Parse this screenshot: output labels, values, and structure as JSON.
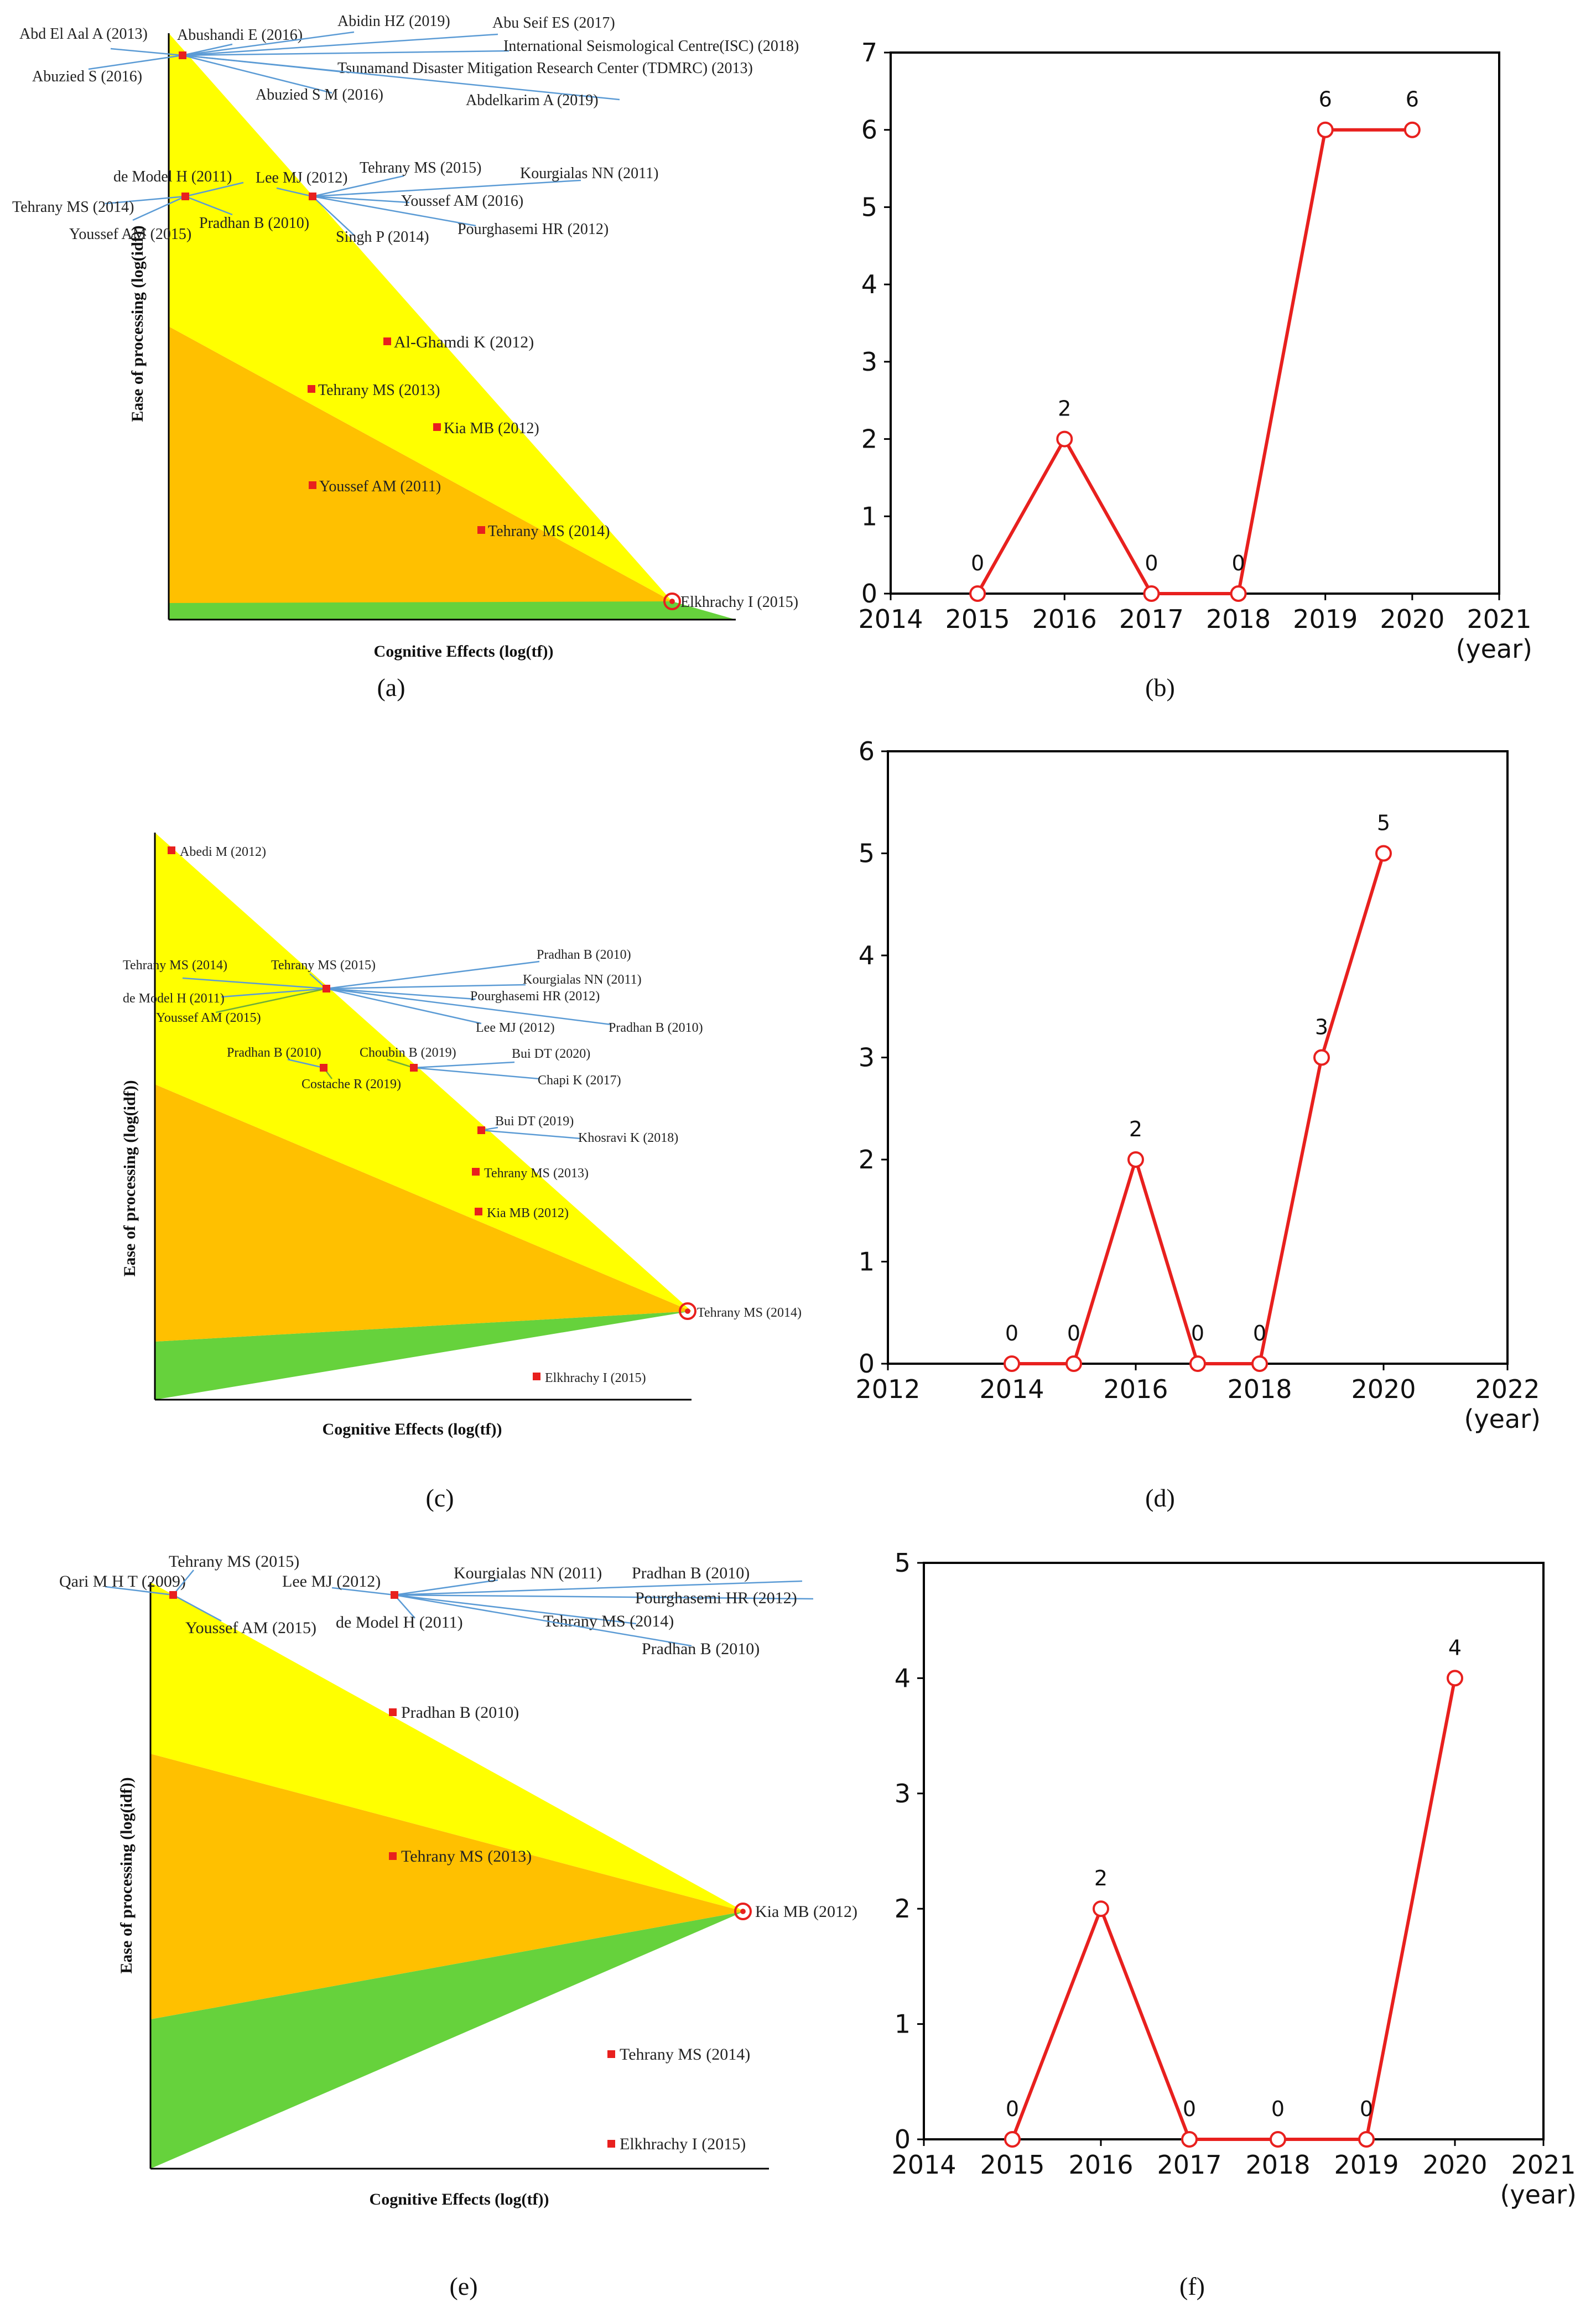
{
  "colors": {
    "yellow": "#ffff00",
    "orange": "#ffc000",
    "green": "#66d23c",
    "red": "#e8201e",
    "leader": "#5b9bd5",
    "leader_green": "#6fae3a",
    "axis": "#000000"
  },
  "chart_data": [
    {
      "id": "a",
      "type": "scatter",
      "panel_label": "(a)",
      "xlabel": "Cognitive Effects (log(tf))",
      "ylabel": "Ease of processing (log(idf))",
      "hubs": [
        {
          "labels": [
            "Abd El Aal A (2013)",
            "Abushandi E (2016)",
            "Abidin HZ (2019)",
            "Abu Seif ES (2017)",
            "International Seismological Centre(ISC) (2018)",
            "Tsunamand Disaster Mitigation Research Center (TDMRC) (2013)",
            "Abdelkarim A (2019)",
            "Abuzied S M (2016)",
            "Abuzied S (2016)"
          ]
        },
        {
          "labels": [
            "de Model H (2011)",
            "Tehrany MS (2014)",
            "Youssef AM (2015)",
            "Pradhan B (2010)"
          ]
        },
        {
          "labels": [
            "Lee MJ (2012)",
            "Tehrany MS (2015)",
            "Kourgialas NN (2011)",
            "Youssef AM (2016)",
            "Pourghasemi HR (2012)",
            "Singh P (2014)"
          ]
        }
      ],
      "points": [
        "Al-Ghamdi K (2012)",
        "Tehrany MS (2013)",
        "Kia MB (2012)",
        "Youssef AM (2011)",
        "Tehrany MS (2014)",
        "Elkhrachy I (2015)"
      ]
    },
    {
      "id": "b",
      "type": "line",
      "panel_label": "(b)",
      "x": [
        2015,
        2016,
        2017,
        2018,
        2019,
        2020
      ],
      "values": [
        0,
        2,
        0,
        0,
        6,
        6
      ],
      "xlim": [
        2014,
        2021
      ],
      "xticks": [
        "2014",
        "2015",
        "2016",
        "2017",
        "2018",
        "2019",
        "2020",
        "2021"
      ],
      "ylim": [
        0,
        7
      ],
      "yticks": [
        "0",
        "1",
        "2",
        "3",
        "4",
        "5",
        "6",
        "7"
      ],
      "xlabel": "(year)",
      "data_labels": [
        "0",
        "2",
        "0",
        "0",
        "6",
        "6"
      ]
    },
    {
      "id": "c",
      "type": "scatter",
      "panel_label": "(c)",
      "xlabel": "Cognitive Effects (log(tf))",
      "ylabel": "Ease of processing (log(idf))",
      "hubs": [
        {
          "labels": [
            "Tehrany MS (2014)",
            "Tehrany MS (2015)",
            "Pradhan B (2010)",
            "Kourgialas NN (2011)",
            "Pourghasemi HR (2012)",
            "de Model H (2011)",
            "Youssef AM (2015)",
            "Lee MJ (2012)",
            "Pradhan B (2010)"
          ]
        },
        {
          "labels": [
            "Pradhan B (2010)",
            "Costache R (2019)"
          ]
        },
        {
          "labels": [
            "Choubin B (2019)",
            "Bui DT (2020)",
            "Chapi K (2017)"
          ]
        },
        {
          "labels": [
            "Bui DT (2019)",
            "Khosravi K (2018)"
          ]
        }
      ],
      "points": [
        "Abedi M (2012)",
        "Tehrany MS (2013)",
        "Kia MB (2012)",
        "Tehrany MS (2014)",
        "Elkhrachy I (2015)"
      ]
    },
    {
      "id": "d",
      "type": "line",
      "panel_label": "(d)",
      "x": [
        2014,
        2015,
        2016,
        2017,
        2018,
        2019,
        2020
      ],
      "values": [
        0,
        0,
        2,
        0,
        0,
        3,
        5
      ],
      "xlim": [
        2012,
        2022
      ],
      "xticks": [
        "2012",
        "2014",
        "2016",
        "2018",
        "2020",
        "2022"
      ],
      "ylim": [
        0,
        6
      ],
      "yticks": [
        "0",
        "1",
        "2",
        "3",
        "4",
        "5",
        "6"
      ],
      "xlabel": "(year)",
      "data_labels": [
        "0",
        "0",
        "2",
        "0",
        "0",
        "3",
        "5"
      ]
    },
    {
      "id": "e",
      "type": "scatter",
      "panel_label": "(e)",
      "xlabel": "Cognitive Effects (log(tf))",
      "ylabel": "Ease of processing (log(idf))",
      "hubs": [
        {
          "labels": [
            "Qari M H T (2009)",
            "Tehrany MS (2015)",
            "Youssef AM (2015)"
          ]
        },
        {
          "labels": [
            "Lee MJ (2012)",
            "Kourgialas NN (2011)",
            "Pradhan B (2010)",
            "Pourghasemi HR (2012)",
            "de Model H (2011)",
            "Tehrany MS (2014)",
            "Pradhan B (2010)"
          ]
        }
      ],
      "points": [
        "Pradhan B (2010)",
        "Tehrany MS (2013)",
        "Kia MB (2012)",
        "Tehrany MS (2014)",
        "Elkhrachy I (2015)"
      ]
    },
    {
      "id": "f",
      "type": "line",
      "panel_label": "(f)",
      "x": [
        2015,
        2016,
        2017,
        2018,
        2019,
        2020
      ],
      "values": [
        0,
        2,
        0,
        0,
        0,
        4
      ],
      "xlim": [
        2014,
        2021
      ],
      "xticks": [
        "2014",
        "2015",
        "2016",
        "2017",
        "2018",
        "2019",
        "2020",
        "2021"
      ],
      "ylim": [
        0,
        5
      ],
      "yticks": [
        "0",
        "1",
        "2",
        "3",
        "4",
        "5"
      ],
      "xlabel": "(year)",
      "data_labels": [
        "0",
        "2",
        "0",
        "0",
        "0",
        "4"
      ]
    }
  ]
}
